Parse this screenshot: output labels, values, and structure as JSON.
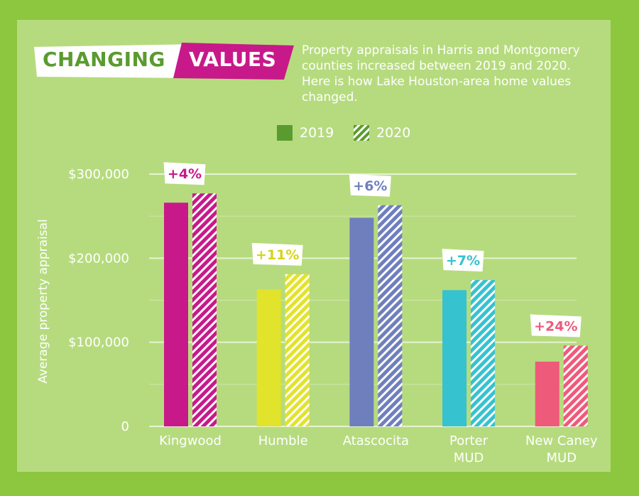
{
  "header": {
    "title_part1": "CHANGING",
    "title_part2": "VALUES",
    "subtitle": "Property appraisals in Harris and Montgomery counties increased between 2019 and 2020. Here is how Lake Houston-area home values changed."
  },
  "legend": {
    "items": [
      {
        "label": "2019",
        "style": "solid",
        "color": "#5a9b2f"
      },
      {
        "label": "2020",
        "style": "hatched",
        "color": "#5a9b2f"
      }
    ]
  },
  "colors": {
    "background": "#8dc63f",
    "panel": "#b6db7e",
    "title_green": "#5a9b2f",
    "title_magenta": "#c8198a",
    "text": "#ffffff"
  },
  "chart_data": {
    "type": "bar",
    "title": "CHANGING VALUES",
    "ylabel": "Average property appraisal",
    "ylim": [
      0,
      300000
    ],
    "yticks": [
      {
        "value": 0,
        "label": "0"
      },
      {
        "value": 100000,
        "label": "$100,000"
      },
      {
        "value": 200000,
        "label": "$200,000"
      },
      {
        "value": 300000,
        "label": "$300,000"
      }
    ],
    "categories": [
      {
        "lines": [
          "Kingwood"
        ],
        "color": "#c8198a",
        "v2019": 266000,
        "v2020": 277000,
        "change": "+4%"
      },
      {
        "lines": [
          "Humble"
        ],
        "color": "#e2e32b",
        "v2019": 163000,
        "v2020": 181000,
        "change": "+11%"
      },
      {
        "lines": [
          "Atascocita"
        ],
        "color": "#6f7fbd",
        "v2019": 248000,
        "v2020": 263000,
        "change": "+6%"
      },
      {
        "lines": [
          "Porter",
          "MUD"
        ],
        "color": "#36c2cf",
        "v2019": 162000,
        "v2020": 174000,
        "change": "+7%"
      },
      {
        "lines": [
          "New Caney",
          "MUD"
        ],
        "color": "#ee5a7a",
        "v2019": 77000,
        "v2020": 96000,
        "change": "+24%"
      }
    ],
    "series": [
      {
        "name": "2019",
        "key": "v2019"
      },
      {
        "name": "2020",
        "key": "v2020"
      }
    ],
    "grid": true,
    "legend_position": "top"
  }
}
